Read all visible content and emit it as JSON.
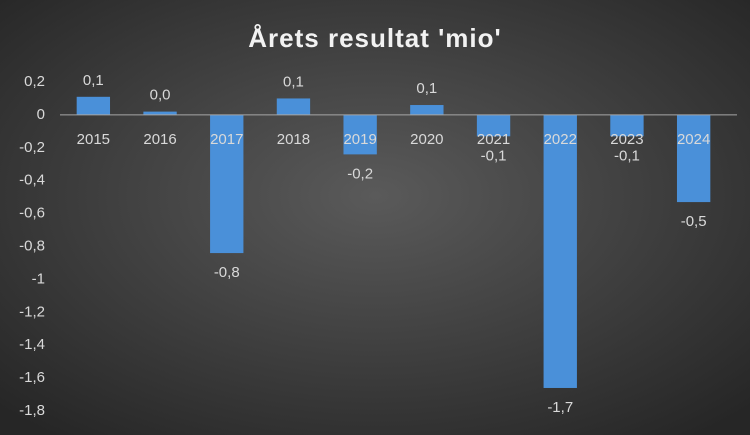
{
  "chart_data": {
    "type": "bar",
    "title": "Årets resultat 'mio'",
    "categories": [
      "2015",
      "2016",
      "2017",
      "2018",
      "2019",
      "2020",
      "2021",
      "2022",
      "2023",
      "2024"
    ],
    "values": [
      0.11,
      0.02,
      -0.84,
      0.1,
      -0.24,
      0.06,
      -0.13,
      -1.66,
      -0.13,
      -0.53
    ],
    "value_labels": [
      "0,1",
      "0,0",
      "-0,8",
      "0,1",
      "-0,2",
      "0,1",
      "-0,1",
      "-1,7",
      "-0,1",
      "-0,5"
    ],
    "color": "#4a90d9",
    "ylim": [
      -1.8,
      0.2
    ],
    "yticks": [
      {
        "value": -1.8,
        "label": "-1,8"
      },
      {
        "value": -1.6,
        "label": "-1,6"
      },
      {
        "value": -1.4,
        "label": "-1,4"
      },
      {
        "value": -1.2,
        "label": "-1,2"
      },
      -1,
      {
        "value": -0.8,
        "label": "-0,8"
      },
      {
        "value": -0.6,
        "label": "-0,6"
      },
      {
        "value": -0.4,
        "label": "-0,4"
      },
      {
        "value": -0.2,
        "label": "-0,2"
      },
      0,
      {
        "value": 0.2,
        "label": "0,2"
      }
    ],
    "grid": false
  }
}
